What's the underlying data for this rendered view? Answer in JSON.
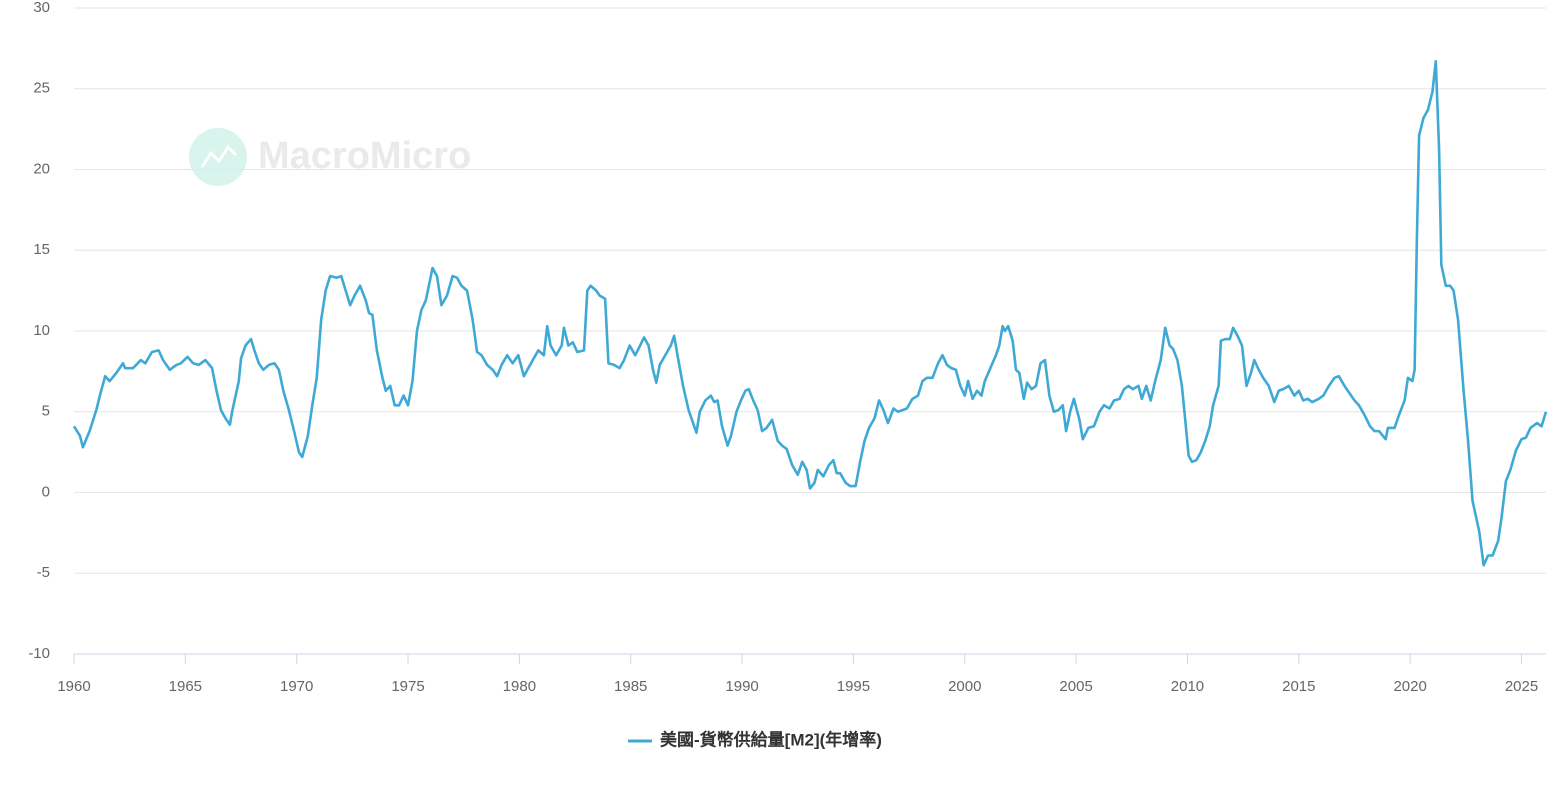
{
  "chart_data": {
    "type": "line",
    "watermark": "MacroMicro",
    "legend": "bottom",
    "grid": true,
    "xlim": [
      1960,
      2026.1
    ],
    "xticks": [
      1960,
      1965,
      1970,
      1975,
      1980,
      1985,
      1990,
      1995,
      2000,
      2005,
      2010,
      2015,
      2020,
      2025
    ],
    "ylim": [
      -10,
      30
    ],
    "yticks": [
      -10,
      -5,
      0,
      5,
      10,
      15,
      20,
      25,
      30
    ],
    "x": [
      1960.0,
      1960.27,
      1960.4,
      1960.7,
      1961.0,
      1961.2,
      1961.4,
      1961.6,
      1961.9,
      1962.2,
      1962.3,
      1962.65,
      1963.0,
      1963.2,
      1963.5,
      1963.8,
      1964.0,
      1964.3,
      1964.6,
      1964.8,
      1965.1,
      1965.35,
      1965.6,
      1965.9,
      1966.2,
      1966.4,
      1966.6,
      1966.8,
      1967.0,
      1967.1,
      1967.4,
      1967.5,
      1967.7,
      1967.95,
      1968.1,
      1968.3,
      1968.5,
      1968.75,
      1969.0,
      1969.2,
      1969.4,
      1969.65,
      1969.9,
      1970.1,
      1970.25,
      1970.5,
      1970.7,
      1970.9,
      1971.1,
      1971.3,
      1971.5,
      1971.8,
      1972.0,
      1972.2,
      1972.4,
      1972.6,
      1972.85,
      1973.1,
      1973.25,
      1973.4,
      1973.6,
      1973.85,
      1974.0,
      1974.2,
      1974.4,
      1974.6,
      1974.8,
      1975.0,
      1975.2,
      1975.4,
      1975.6,
      1975.8,
      1976.1,
      1976.3,
      1976.5,
      1976.75,
      1977.0,
      1977.2,
      1977.4,
      1977.65,
      1977.9,
      1978.1,
      1978.3,
      1978.55,
      1978.8,
      1979.0,
      1979.2,
      1979.45,
      1979.7,
      1979.95,
      1980.2,
      1980.4,
      1980.6,
      1980.85,
      1981.1,
      1981.25,
      1981.4,
      1981.65,
      1981.9,
      1982.0,
      1982.2,
      1982.4,
      1982.6,
      1982.9,
      1983.05,
      1983.2,
      1983.45,
      1983.6,
      1983.85,
      1984.0,
      1984.25,
      1984.5,
      1984.7,
      1984.95,
      1985.2,
      1985.35,
      1985.6,
      1985.8,
      1986.0,
      1986.15,
      1986.3,
      1986.55,
      1986.8,
      1986.95,
      1987.1,
      1987.35,
      1987.6,
      1987.75,
      1987.95,
      1988.1,
      1988.35,
      1988.6,
      1988.75,
      1988.9,
      1989.1,
      1989.35,
      1989.5,
      1989.75,
      1989.95,
      1990.15,
      1990.3,
      1990.5,
      1990.7,
      1990.9,
      1991.1,
      1991.35,
      1991.6,
      1991.8,
      1992.0,
      1992.25,
      1992.5,
      1992.7,
      1992.9,
      1993.05,
      1993.25,
      1993.4,
      1993.65,
      1993.9,
      1994.1,
      1994.25,
      1994.4,
      1994.65,
      1994.85,
      1995.1,
      1995.3,
      1995.5,
      1995.7,
      1995.95,
      1996.15,
      1996.35,
      1996.55,
      1996.8,
      1997.0,
      1997.2,
      1997.4,
      1997.65,
      1997.9,
      1998.1,
      1998.3,
      1998.55,
      1998.8,
      1999.0,
      1999.2,
      1999.4,
      1999.6,
      1999.8,
      2000.0,
      2000.15,
      2000.35,
      2000.55,
      2000.75,
      2000.9,
      2001.15,
      2001.4,
      2001.55,
      2001.7,
      2001.8,
      2001.95,
      2002.15,
      2002.3,
      2002.45,
      2002.65,
      2002.8,
      2003.0,
      2003.2,
      2003.4,
      2003.6,
      2003.8,
      2004.0,
      2004.2,
      2004.4,
      2004.55,
      2004.75,
      2004.9,
      2005.15,
      2005.3,
      2005.55,
      2005.8,
      2006.05,
      2006.25,
      2006.5,
      2006.7,
      2006.95,
      2007.15,
      2007.35,
      2007.55,
      2007.8,
      2007.95,
      2008.15,
      2008.35,
      2008.55,
      2008.8,
      2009.0,
      2009.2,
      2009.35,
      2009.55,
      2009.75,
      2009.9,
      2010.05,
      2010.2,
      2010.4,
      2010.6,
      2010.8,
      2011.0,
      2011.15,
      2011.4,
      2011.5,
      2011.7,
      2011.9,
      2012.05,
      2012.25,
      2012.45,
      2012.65,
      2012.85,
      2013.0,
      2013.2,
      2013.4,
      2013.65,
      2013.9,
      2014.1,
      2014.3,
      2014.55,
      2014.8,
      2015.0,
      2015.2,
      2015.4,
      2015.6,
      2015.9,
      2016.1,
      2016.35,
      2016.6,
      2016.8,
      2017.05,
      2017.25,
      2017.5,
      2017.7,
      2017.95,
      2018.2,
      2018.4,
      2018.6,
      2018.9,
      2019.0,
      2019.3,
      2019.5,
      2019.75,
      2019.9,
      2020.1,
      2020.2,
      2020.3,
      2020.4,
      2020.6,
      2020.8,
      2021.0,
      2021.15,
      2021.3,
      2021.4,
      2021.6,
      2021.8,
      2021.95,
      2022.15,
      2022.4,
      2022.6,
      2022.8,
      2023.1,
      2023.3,
      2023.5,
      2023.7,
      2023.95,
      2024.1,
      2024.3,
      2024.5,
      2024.75,
      2025.0,
      2025.2,
      2025.4,
      2025.7,
      2025.9,
      2026.1
    ],
    "series": [
      {
        "name": "美國-貨幣供給量[M2](年增率)",
        "color": "#3fa9d5",
        "values": [
          4.1,
          3.5,
          2.8,
          3.8,
          5.1,
          6.2,
          7.2,
          6.9,
          7.4,
          8.0,
          7.7,
          7.7,
          8.2,
          8.0,
          8.7,
          8.8,
          8.2,
          7.6,
          7.9,
          8.0,
          8.4,
          8.0,
          7.9,
          8.2,
          7.7,
          6.3,
          5.1,
          4.6,
          4.2,
          5.0,
          6.9,
          8.3,
          9.1,
          9.5,
          8.8,
          8.0,
          7.6,
          7.9,
          8.0,
          7.6,
          6.3,
          5.1,
          3.7,
          2.5,
          2.2,
          3.5,
          5.4,
          7.1,
          10.7,
          12.5,
          13.4,
          13.3,
          13.4,
          12.5,
          11.6,
          12.2,
          12.8,
          11.9,
          11.1,
          11.0,
          8.8,
          7.1,
          6.3,
          6.6,
          5.4,
          5.4,
          6.0,
          5.4,
          6.9,
          10.0,
          11.3,
          11.9,
          13.9,
          13.4,
          11.6,
          12.2,
          13.4,
          13.3,
          12.8,
          12.5,
          10.7,
          8.7,
          8.5,
          7.9,
          7.6,
          7.2,
          7.9,
          8.5,
          8.0,
          8.5,
          7.2,
          7.7,
          8.2,
          8.8,
          8.5,
          10.3,
          9.1,
          8.5,
          9.1,
          10.2,
          9.1,
          9.3,
          8.7,
          8.8,
          12.5,
          12.8,
          12.5,
          12.2,
          12.0,
          8.0,
          7.9,
          7.7,
          8.2,
          9.1,
          8.5,
          8.9,
          9.6,
          9.1,
          7.6,
          6.8,
          7.9,
          8.5,
          9.1,
          9.7,
          8.5,
          6.6,
          5.1,
          4.5,
          3.7,
          5.0,
          5.7,
          6.0,
          5.6,
          5.7,
          4.1,
          2.9,
          3.5,
          5.0,
          5.7,
          6.3,
          6.4,
          5.7,
          5.1,
          3.8,
          4.0,
          4.5,
          3.2,
          2.9,
          2.7,
          1.7,
          1.1,
          1.9,
          1.4,
          0.25,
          0.6,
          1.4,
          1.0,
          1.7,
          2.0,
          1.2,
          1.2,
          0.6,
          0.4,
          0.4,
          1.9,
          3.2,
          4.0,
          4.6,
          5.7,
          5.1,
          4.3,
          5.2,
          5.0,
          5.1,
          5.2,
          5.8,
          6.0,
          6.9,
          7.1,
          7.1,
          8.0,
          8.5,
          7.9,
          7.7,
          7.6,
          6.6,
          6.0,
          6.9,
          5.8,
          6.3,
          6.0,
          6.9,
          7.7,
          8.5,
          9.1,
          10.3,
          10.0,
          10.3,
          9.4,
          7.6,
          7.4,
          5.8,
          6.8,
          6.4,
          6.6,
          8.0,
          8.2,
          6.0,
          5.0,
          5.1,
          5.4,
          3.8,
          5.1,
          5.8,
          4.5,
          3.3,
          4.0,
          4.1,
          5.0,
          5.4,
          5.2,
          5.7,
          5.8,
          6.4,
          6.6,
          6.4,
          6.6,
          5.8,
          6.6,
          5.7,
          6.9,
          8.2,
          10.2,
          9.1,
          8.9,
          8.2,
          6.6,
          4.5,
          2.3,
          1.9,
          2.0,
          2.5,
          3.2,
          4.1,
          5.4,
          6.6,
          9.4,
          9.5,
          9.5,
          10.2,
          9.7,
          9.1,
          6.6,
          7.4,
          8.2,
          7.6,
          7.1,
          6.6,
          5.6,
          6.3,
          6.4,
          6.6,
          6.0,
          6.3,
          5.7,
          5.8,
          5.6,
          5.8,
          6.0,
          6.6,
          7.1,
          7.2,
          6.6,
          6.2,
          5.7,
          5.4,
          4.8,
          4.1,
          3.8,
          3.8,
          3.3,
          4.0,
          4.0,
          4.8,
          5.7,
          7.1,
          6.9,
          7.6,
          15.6,
          22.1,
          23.2,
          23.7,
          24.8,
          26.7,
          21.2,
          14.1,
          12.8,
          12.8,
          12.5,
          10.7,
          6.3,
          3.2,
          -0.5,
          -2.4,
          -4.5,
          -3.9,
          -3.9,
          -3.0,
          -1.6,
          0.7,
          1.4,
          2.6,
          3.3,
          3.4,
          4.0,
          4.3,
          4.1,
          5.0
        ]
      }
    ]
  }
}
